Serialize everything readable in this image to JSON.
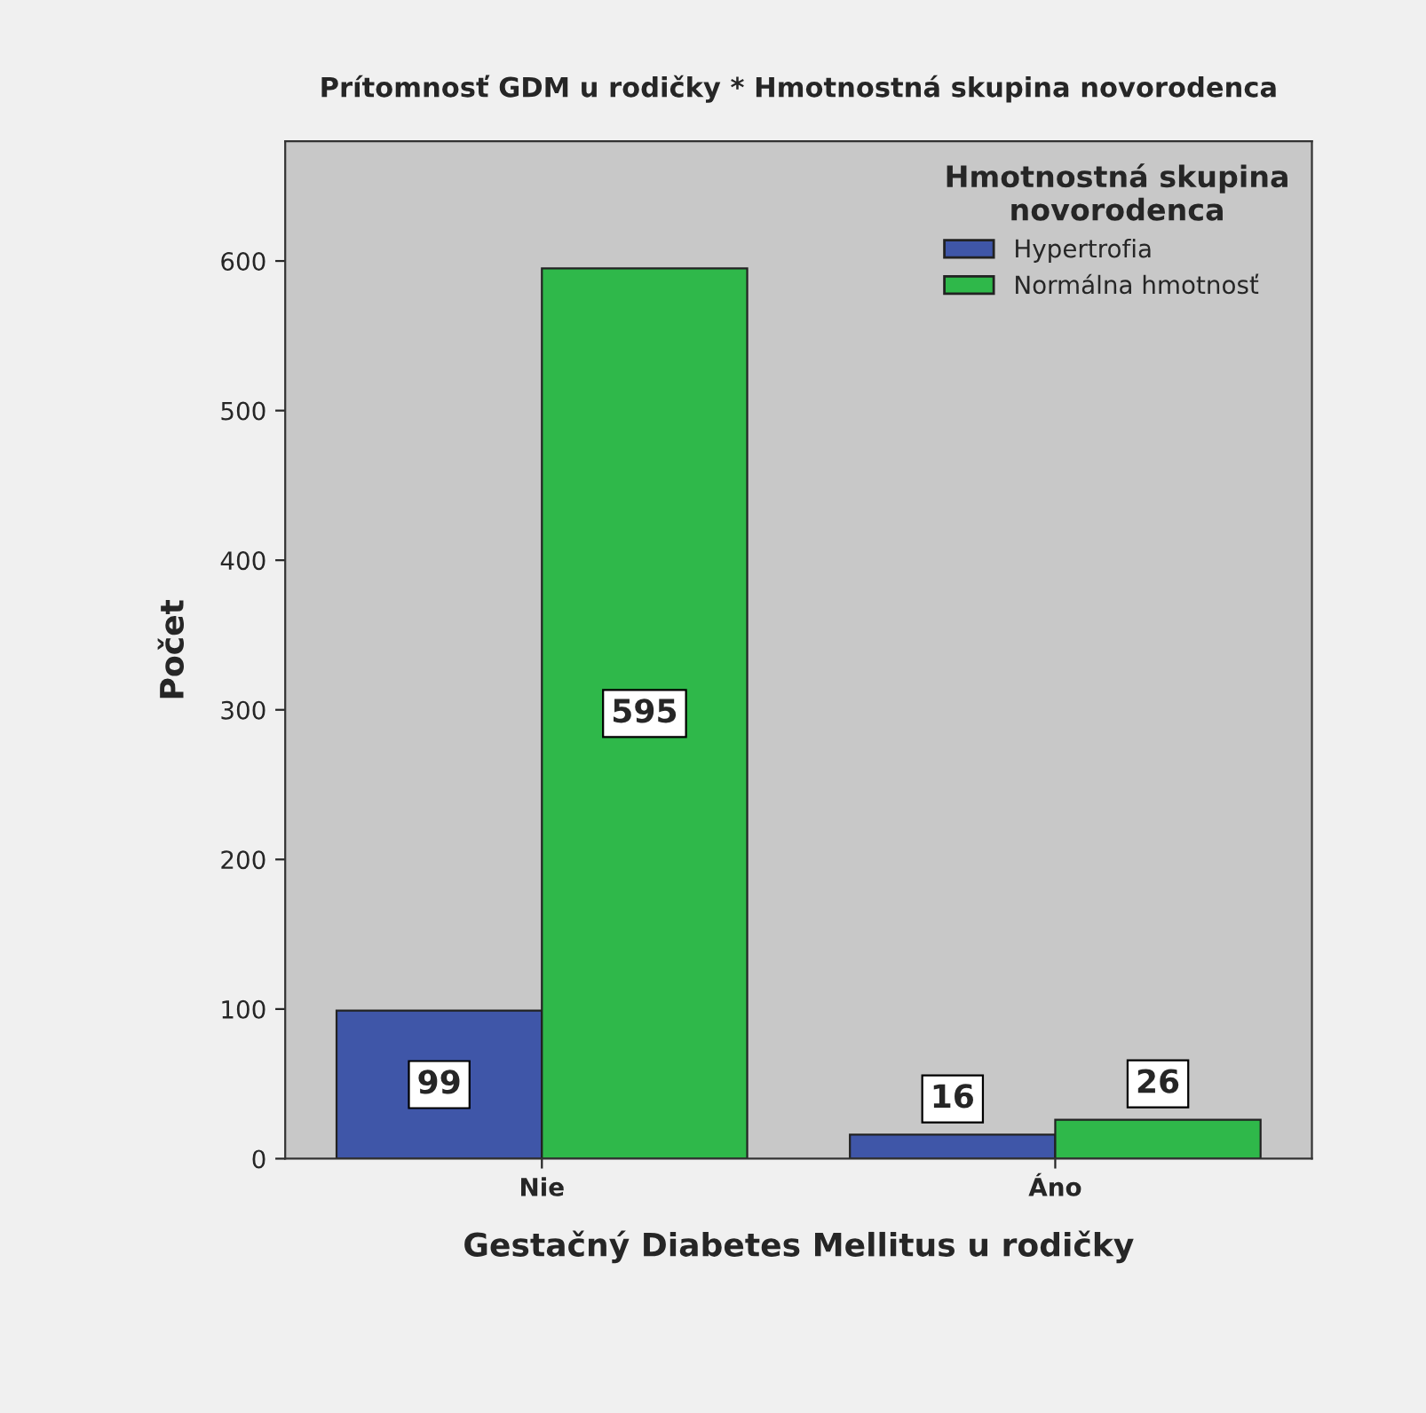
{
  "chart_data": {
    "type": "bar",
    "title": "Prítomnosť GDM u rodičky * Hmotnostná skupina novorodenca",
    "xlabel": "Gestačný Diabetes Mellitus u rodičky",
    "ylabel": "Počet",
    "legend_title": "Hmotnostná skupina\nnovorodenca",
    "categories": [
      "Nie",
      "Áno"
    ],
    "series": [
      {
        "name": "Hypertrofia",
        "color": "#3f56a8",
        "values": [
          99,
          16
        ]
      },
      {
        "name": "Normálna hmotnosť",
        "color": "#2fb84a",
        "values": [
          595,
          26
        ]
      }
    ],
    "ylim": [
      0,
      680
    ],
    "yticks": [
      0,
      100,
      200,
      300,
      400,
      500,
      600
    ],
    "legend": "top right",
    "data_labels": true
  }
}
